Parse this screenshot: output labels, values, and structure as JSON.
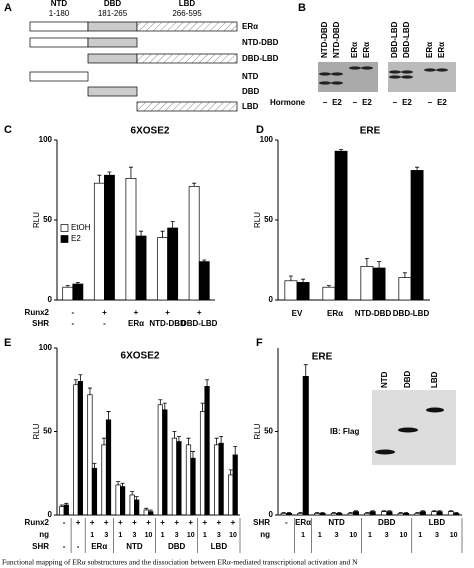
{
  "letters": [
    "A",
    "B",
    "C",
    "D",
    "E",
    "F"
  ],
  "schematic": {
    "domains": [
      {
        "name": "NTD",
        "range": "1-180"
      },
      {
        "name": "DBD",
        "range": "181-265"
      },
      {
        "name": "LBD",
        "range": "266-595"
      }
    ],
    "constructs": [
      "ERα",
      "NTD-DBD",
      "DBD-LBD",
      "NTD",
      "DBD",
      "LBD"
    ]
  },
  "blot": {
    "lanes": [
      "NTD-DBD",
      "NTD-DBD",
      "ERα",
      "ERα",
      "DBD-LBD",
      "DBD-LBD",
      "ERα",
      "ERα"
    ],
    "hormone_label": "Hormone",
    "hormone": [
      "–",
      "E2",
      "–",
      "E2",
      "–",
      "E2",
      "–",
      "E2"
    ]
  },
  "inset": {
    "lanes": [
      "NTD",
      "DBD",
      "LBD"
    ],
    "label": "IB: Flag"
  },
  "caption": "Functional mapping of ERα substructures and the dissociation between ERα-mediated transcriptional activation and N",
  "chart_data": [
    {
      "type": "bar",
      "title": "6XOSE2",
      "y_label": "RLU",
      "ylim": [
        0,
        100
      ],
      "yticks": [
        0,
        50,
        100
      ],
      "legend": true,
      "runx2_label": "Runx2",
      "runx2": [
        "-",
        "+",
        "+",
        "+",
        "+"
      ],
      "category_label": "SHR",
      "categories": [
        "-",
        "-",
        "ERα",
        "NTD-DBD",
        "DBD-LBD"
      ],
      "series": [
        {
          "name": "EtOH",
          "color": "#ffffff",
          "values": [
            8,
            73,
            76,
            39,
            71
          ],
          "errors": [
            1,
            5,
            7,
            4,
            2
          ]
        },
        {
          "name": "E2",
          "color": "#000000",
          "values": [
            10,
            78,
            40,
            45,
            24
          ],
          "errors": [
            1,
            2,
            3,
            4,
            1
          ]
        }
      ]
    },
    {
      "type": "bar",
      "title": "ERE",
      "y_label": "RLU",
      "ylim": [
        0,
        100
      ],
      "yticks": [
        0,
        50,
        100
      ],
      "legend": false,
      "categories": [
        "EV",
        "ERα",
        "NTD-DBD",
        "DBD-LBD"
      ],
      "series": [
        {
          "color": "#ffffff",
          "values": [
            12,
            8,
            21,
            14
          ],
          "errors": [
            3,
            1,
            5,
            3
          ]
        },
        {
          "color": "#000000",
          "values": [
            11,
            93,
            20,
            81
          ],
          "errors": [
            2,
            1,
            4,
            2
          ]
        }
      ]
    },
    {
      "type": "bar",
      "title": "6XOSE2",
      "y_label": "RLU",
      "ylim": [
        0,
        100
      ],
      "yticks": [
        0,
        50,
        100
      ],
      "legend": false,
      "runx2_label": "Runx2",
      "runx2": [
        "-",
        "+",
        "+",
        "+",
        "+",
        "+",
        "+",
        "+",
        "+",
        "+",
        "+",
        "+",
        "+"
      ],
      "category_label": "ng",
      "categories": [
        null,
        null,
        "1",
        "3",
        "1",
        "3",
        "10",
        "1",
        "3",
        "10",
        "1",
        "3",
        "10"
      ],
      "group_label": "SHR",
      "groups": [
        {
          "label": "-",
          "size": 1
        },
        {
          "label": "-",
          "size": 1
        },
        {
          "label": "ERα",
          "size": 2
        },
        {
          "label": "NTD",
          "size": 3
        },
        {
          "label": "DBD",
          "size": 3
        },
        {
          "label": "LBD",
          "size": 3
        }
      ],
      "series": [
        {
          "color": "#ffffff",
          "values": [
            5,
            78,
            72,
            42,
            18,
            12,
            3,
            66,
            46,
            42,
            62,
            42,
            24
          ],
          "errors": [
            1,
            3,
            4,
            4,
            2,
            2,
            1,
            3,
            4,
            4,
            5,
            4,
            3
          ]
        },
        {
          "color": "#000000",
          "values": [
            6,
            80,
            28,
            57,
            17,
            9,
            2,
            63,
            44,
            34,
            77,
            43,
            36
          ],
          "errors": [
            1,
            4,
            3,
            5,
            2,
            2,
            1,
            4,
            3,
            4,
            4,
            4,
            5
          ]
        }
      ]
    },
    {
      "type": "bar",
      "title": "ERE",
      "y_label": "RLU",
      "ylim": [
        0,
        100
      ],
      "yticks": [
        0,
        50
      ],
      "legend": false,
      "group_label": "SHR",
      "groups": [
        {
          "label": "-",
          "size": 1
        },
        {
          "label": "ERα",
          "size": 1
        },
        {
          "label": "NTD",
          "size": 3
        },
        {
          "label": "DBD",
          "size": 3
        },
        {
          "label": "LBD",
          "size": 3
        }
      ],
      "category_label": "ng",
      "categories": [
        null,
        "1",
        "1",
        "3",
        "10",
        "1",
        "3",
        "10",
        "1",
        "3",
        "10"
      ],
      "series": [
        {
          "color": "#ffffff",
          "values": [
            1,
            1,
            1,
            1,
            1,
            1,
            2,
            1,
            1,
            2,
            2
          ],
          "errors": [
            0.5,
            0.5,
            0.5,
            0.5,
            0.5,
            0.5,
            0.5,
            0.5,
            0.5,
            0.5,
            0.5
          ]
        },
        {
          "color": "#000000",
          "values": [
            1,
            83,
            1,
            1,
            2,
            2,
            2,
            1,
            2,
            2,
            1
          ],
          "errors": [
            0.5,
            7,
            0.5,
            0.5,
            0.5,
            0.5,
            0.5,
            0.5,
            0.5,
            0.5,
            0.5
          ]
        }
      ]
    }
  ]
}
